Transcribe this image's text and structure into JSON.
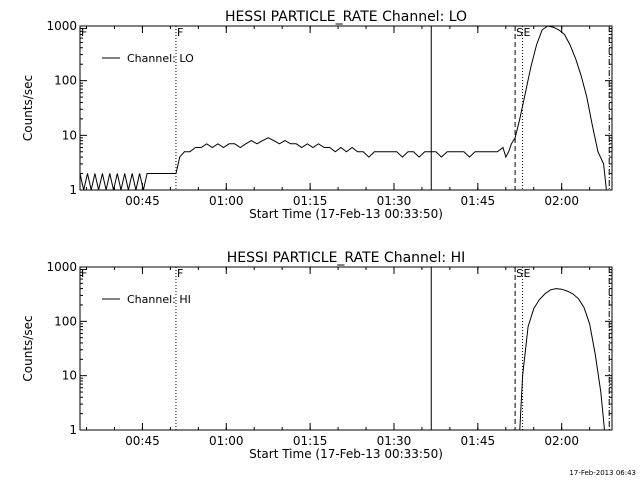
{
  "footer": {
    "timestamp": "17-Feb-2013 06:43"
  },
  "chart_data": [
    {
      "type": "line",
      "title": "HESSI PARTICLE_RATE Channel: LO",
      "xlabel": "Start Time (17-Feb-13 00:33:50)",
      "ylabel": "Counts/sec",
      "y_scale": "log",
      "ylim": [
        1,
        1000
      ],
      "xlim": [
        "00:33:50",
        "02:09:00"
      ],
      "xticks": [
        "00:45",
        "01:00",
        "01:15",
        "01:30",
        "01:45",
        "02:00"
      ],
      "yticks": [
        "1",
        "10",
        "100",
        "1000"
      ],
      "grid": false,
      "legend": {
        "position": "top-left",
        "entries": [
          "Channel: LO"
        ]
      },
      "markers": [
        {
          "time": "00:51:00",
          "label": "F",
          "style": "dotted"
        },
        {
          "time": "01:36:40",
          "label": "",
          "style": "solid"
        },
        {
          "time": "01:51:40",
          "label": "S",
          "style": "dashed"
        },
        {
          "time": "01:53:00",
          "label": "E",
          "style": "dotted"
        },
        {
          "time": "02:08:30",
          "label": "",
          "style": "dashdot"
        }
      ],
      "series": [
        {
          "name": "Channel: LO",
          "x": [
            "00:33:50",
            "00:34:30",
            "00:35:10",
            "00:35:50",
            "00:36:30",
            "00:37:10",
            "00:37:50",
            "00:38:30",
            "00:39:10",
            "00:39:50",
            "00:40:30",
            "00:41:10",
            "00:41:50",
            "00:42:30",
            "00:43:10",
            "00:43:50",
            "00:44:30",
            "00:45:10",
            "00:45:50",
            "00:46:30",
            "00:47:10",
            "00:47:50",
            "00:48:30",
            "00:49:10",
            "00:49:50",
            "00:50:30",
            "00:51:00",
            "00:51:40",
            "00:52:30",
            "00:53:30",
            "00:54:30",
            "00:55:30",
            "00:56:30",
            "00:57:30",
            "00:58:30",
            "00:59:30",
            "01:00:30",
            "01:01:30",
            "01:02:30",
            "01:03:30",
            "01:04:30",
            "01:05:30",
            "01:06:30",
            "01:07:30",
            "01:08:30",
            "01:09:30",
            "01:10:30",
            "01:11:30",
            "01:12:30",
            "01:13:30",
            "01:14:30",
            "01:15:30",
            "01:16:30",
            "01:17:30",
            "01:18:30",
            "01:19:30",
            "01:20:30",
            "01:21:30",
            "01:22:30",
            "01:23:30",
            "01:24:30",
            "01:25:30",
            "01:26:30",
            "01:27:30",
            "01:28:30",
            "01:29:30",
            "01:30:30",
            "01:31:30",
            "01:32:30",
            "01:33:30",
            "01:34:30",
            "01:35:30",
            "01:36:30",
            "01:37:30",
            "01:38:30",
            "01:39:30",
            "01:40:30",
            "01:41:30",
            "01:42:30",
            "01:43:30",
            "01:44:30",
            "01:45:30",
            "01:46:30",
            "01:47:30",
            "01:48:30",
            "01:49:30",
            "01:50:00",
            "01:50:30",
            "01:51:00",
            "01:51:40",
            "01:52:30",
            "01:53:30",
            "01:54:30",
            "01:55:30",
            "01:56:30",
            "01:57:30",
            "01:58:30",
            "01:59:30",
            "02:00:30",
            "02:01:30",
            "02:02:30",
            "02:03:30",
            "02:04:30",
            "02:05:30",
            "02:06:30",
            "02:07:30",
            "02:08:00"
          ],
          "values": [
            2,
            1,
            2,
            1,
            2,
            1,
            2,
            1,
            2,
            1,
            2,
            1,
            2,
            1,
            2,
            1,
            2,
            1,
            2,
            2,
            2,
            2,
            2,
            2,
            2,
            2,
            2,
            4,
            5,
            5,
            6,
            6,
            7,
            6,
            7,
            6,
            7,
            7,
            6,
            7,
            8,
            7,
            8,
            9,
            8,
            7,
            8,
            7,
            7,
            6,
            7,
            6,
            7,
            6,
            6,
            5,
            6,
            5,
            6,
            5,
            5,
            4,
            5,
            5,
            5,
            5,
            5,
            4,
            5,
            5,
            4,
            5,
            5,
            5,
            4,
            5,
            5,
            5,
            5,
            4,
            5,
            5,
            5,
            5,
            5,
            6,
            4,
            5,
            7,
            9,
            20,
            60,
            180,
            450,
            850,
            1000,
            950,
            850,
            700,
            450,
            250,
            120,
            50,
            15,
            5,
            3,
            1
          ]
        }
      ]
    },
    {
      "type": "line",
      "title": "HESSI PARTICLE_RATE Channel: HI",
      "xlabel": "Start Time (17-Feb-13 00:33:50)",
      "ylabel": "Counts/sec",
      "y_scale": "log",
      "ylim": [
        1,
        1000
      ],
      "xlim": [
        "00:33:50",
        "02:09:00"
      ],
      "xticks": [
        "00:45",
        "01:00",
        "01:15",
        "01:30",
        "01:45",
        "02:00"
      ],
      "yticks": [
        "1",
        "10",
        "100",
        "1000"
      ],
      "grid": false,
      "legend": {
        "position": "top-left",
        "entries": [
          "Channel: HI"
        ]
      },
      "markers": [
        {
          "time": "00:51:00",
          "label": "F",
          "style": "dotted"
        },
        {
          "time": "01:36:40",
          "label": "",
          "style": "solid"
        },
        {
          "time": "01:51:40",
          "label": "S",
          "style": "dashed"
        },
        {
          "time": "01:53:00",
          "label": "E",
          "style": "dotted"
        },
        {
          "time": "02:08:30",
          "label": "",
          "style": "dashdot"
        }
      ],
      "series": [
        {
          "name": "Channel: HI",
          "x": [
            "01:52:30",
            "01:53:00",
            "01:54:00",
            "01:55:00",
            "01:56:00",
            "01:57:00",
            "01:58:00",
            "01:59:00",
            "02:00:00",
            "02:01:00",
            "02:02:00",
            "02:03:00",
            "02:04:00",
            "02:05:00",
            "02:06:00",
            "02:07:00",
            "02:07:40"
          ],
          "values": [
            1,
            10,
            80,
            170,
            250,
            320,
            380,
            400,
            390,
            360,
            320,
            260,
            180,
            90,
            25,
            5,
            1
          ]
        }
      ]
    }
  ]
}
